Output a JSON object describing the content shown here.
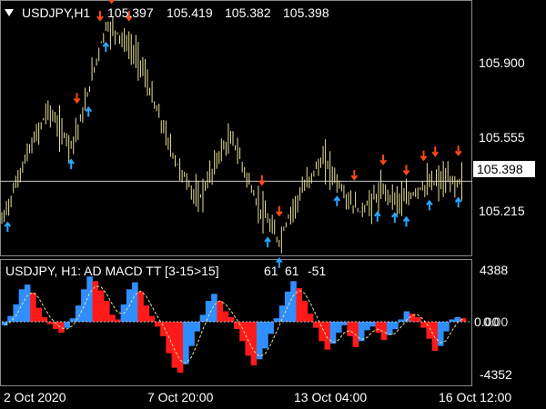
{
  "main": {
    "symbol": "USDJPY,H1",
    "ohlc": [
      "105.397",
      "105.419",
      "105.382",
      "105.398"
    ],
    "current_price": "105.398",
    "price_ticks": [
      "105.900",
      "105.555",
      "105.215"
    ],
    "colors": {
      "bars": "#e8e39a",
      "up_arrow": "#2aa6ff",
      "down_arrow": "#ff4a1a",
      "current_line": "#c8c8c8"
    }
  },
  "indicator": {
    "title": "USDJPY, H1: AD MACD TT [3-15>15]",
    "values": [
      "61",
      "61",
      "-51"
    ],
    "ticks": [
      "4388",
      "0.00",
      "-4352"
    ],
    "zero_right_label": "0.00",
    "colors": {
      "pos": "#2f8fff",
      "neg": "#ff1a1a",
      "signal": "#e8e39a",
      "zero": "#bfbfbf"
    }
  },
  "time_axis": [
    "2 Oct 2020",
    "7 Oct 20:00",
    "13 Oct 04:00",
    "16 Oct 12:00"
  ],
  "chart_data": {
    "type": "line",
    "title": "USDJPY,H1",
    "x": [
      0,
      4,
      8,
      12,
      16,
      20,
      24,
      28,
      32,
      36,
      40,
      44,
      48,
      52,
      56,
      60,
      64,
      68,
      72,
      76,
      80,
      84,
      88,
      92,
      96,
      100,
      104,
      108,
      112,
      116,
      120,
      124,
      128,
      132,
      136,
      140,
      144,
      148,
      152,
      156,
      160
    ],
    "values": [
      105.2,
      105.35,
      105.5,
      105.62,
      105.75,
      105.65,
      105.58,
      105.72,
      105.95,
      106.15,
      106.12,
      106.05,
      105.98,
      105.8,
      105.65,
      105.5,
      105.4,
      105.3,
      105.42,
      105.55,
      105.6,
      105.45,
      105.3,
      105.2,
      105.1,
      105.25,
      105.35,
      105.45,
      105.5,
      105.4,
      105.3,
      105.25,
      105.3,
      105.35,
      105.32,
      105.3,
      105.36,
      105.38,
      105.4,
      105.39,
      105.398
    ],
    "ylim": [
      105.05,
      106.2
    ],
    "indicator": {
      "histogram": [
        -300,
        500,
        1500,
        2800,
        3200,
        2500,
        1200,
        400,
        -200,
        -600,
        -900,
        -500,
        300,
        1400,
        2800,
        3900,
        3500,
        2700,
        1800,
        600,
        200,
        1500,
        2800,
        3400,
        2600,
        1400,
        500,
        -400,
        -1200,
        -2600,
        -3800,
        -4200,
        -3500,
        -2000,
        -800,
        600,
        1800,
        2400,
        1800,
        900,
        400,
        -600,
        -1600,
        -2800,
        -3600,
        -3100,
        -2200,
        -1000,
        300,
        1400,
        2600,
        3500,
        2900,
        1800,
        700,
        -500,
        -1600,
        -2300,
        -1800,
        -900,
        -300,
        -1200,
        -2100,
        -1600,
        -700,
        -400,
        -900,
        -1500,
        -1100,
        -600,
        200,
        900,
        700,
        400,
        -500,
        -1400,
        -2400,
        -2000,
        -800,
        200,
        400,
        300
      ],
      "ylim": [
        -4352,
        4388
      ]
    }
  }
}
